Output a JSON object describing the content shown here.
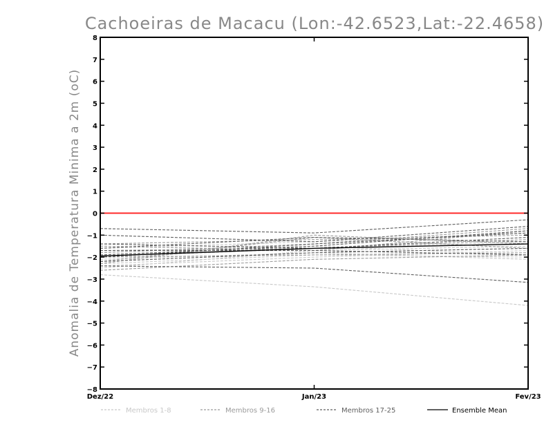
{
  "chart_data": {
    "type": "line",
    "title": "Cachoeiras de Macacu (Lon:-42.6523,Lat:-22.4658)",
    "ylabel": "Anomalia de Temperatura Minima a 2m (oC)",
    "xlabel": "",
    "ylim": [
      -8,
      8
    ],
    "yticks": [
      -8,
      -7,
      -6,
      -5,
      -4,
      -3,
      -2,
      -1,
      0,
      1,
      2,
      3,
      4,
      5,
      6,
      7,
      8
    ],
    "categories": [
      "Dez/22",
      "Jan/23",
      "Fev/23"
    ],
    "reference_line": {
      "y": 0,
      "color": "#ff2a2a"
    },
    "groups": [
      {
        "name": "Membros 1-8",
        "color": "#c8c8c8",
        "dashed": true
      },
      {
        "name": "Membros 9-16",
        "color": "#9a9a9a",
        "dashed": true
      },
      {
        "name": "Membros 17-25",
        "color": "#5e5e5e",
        "dashed": true
      },
      {
        "name": "Ensemble Mean",
        "color": "#000000",
        "dashed": false
      }
    ],
    "series": [
      {
        "group": 0,
        "values": [
          -2.8,
          -3.35,
          -4.2
        ]
      },
      {
        "group": 0,
        "values": [
          -2.3,
          -1.9,
          -2.0
        ]
      },
      {
        "group": 0,
        "values": [
          -2.0,
          -1.6,
          -1.3
        ]
      },
      {
        "group": 0,
        "values": [
          -2.4,
          -2.0,
          -1.7
        ]
      },
      {
        "group": 0,
        "values": [
          -1.9,
          -1.5,
          -1.9
        ]
      },
      {
        "group": 0,
        "values": [
          -2.1,
          -1.8,
          -2.1
        ]
      },
      {
        "group": 0,
        "values": [
          -1.6,
          -1.3,
          -0.9
        ]
      },
      {
        "group": 0,
        "values": [
          -2.5,
          -1.7,
          -1.5
        ]
      },
      {
        "group": 1,
        "values": [
          -1.5,
          -1.7,
          -0.8
        ]
      },
      {
        "group": 1,
        "values": [
          -2.2,
          -1.1,
          -1.6
        ]
      },
      {
        "group": 1,
        "values": [
          -1.8,
          -1.4,
          -0.7
        ]
      },
      {
        "group": 1,
        "values": [
          -2.6,
          -2.1,
          -1.9
        ]
      },
      {
        "group": 1,
        "values": [
          -1.7,
          -1.6,
          -1.2
        ]
      },
      {
        "group": 1,
        "values": [
          -2.3,
          -1.0,
          -1.4
        ]
      },
      {
        "group": 1,
        "values": [
          -1.4,
          -1.2,
          -1.0
        ]
      },
      {
        "group": 1,
        "values": [
          -2.0,
          -1.9,
          -1.8
        ]
      },
      {
        "group": 2,
        "values": [
          -0.7,
          -0.9,
          -0.3
        ]
      },
      {
        "group": 2,
        "values": [
          -1.0,
          -1.3,
          -0.6
        ]
      },
      {
        "group": 2,
        "values": [
          -2.4,
          -2.5,
          -3.15
        ]
      },
      {
        "group": 2,
        "values": [
          -1.4,
          -1.6,
          -1.1
        ]
      },
      {
        "group": 2,
        "values": [
          -1.9,
          -1.5,
          -0.8
        ]
      },
      {
        "group": 2,
        "values": [
          -2.2,
          -1.8,
          -1.6
        ]
      },
      {
        "group": 2,
        "values": [
          -1.6,
          -1.1,
          -1.3
        ]
      },
      {
        "group": 2,
        "values": [
          -2.0,
          -1.4,
          -0.9
        ]
      },
      {
        "group": 2,
        "values": [
          -1.7,
          -1.7,
          -1.9
        ]
      },
      {
        "group": 3,
        "name": "Ensemble Mean",
        "values": [
          -1.95,
          -1.6,
          -1.4
        ]
      }
    ]
  }
}
